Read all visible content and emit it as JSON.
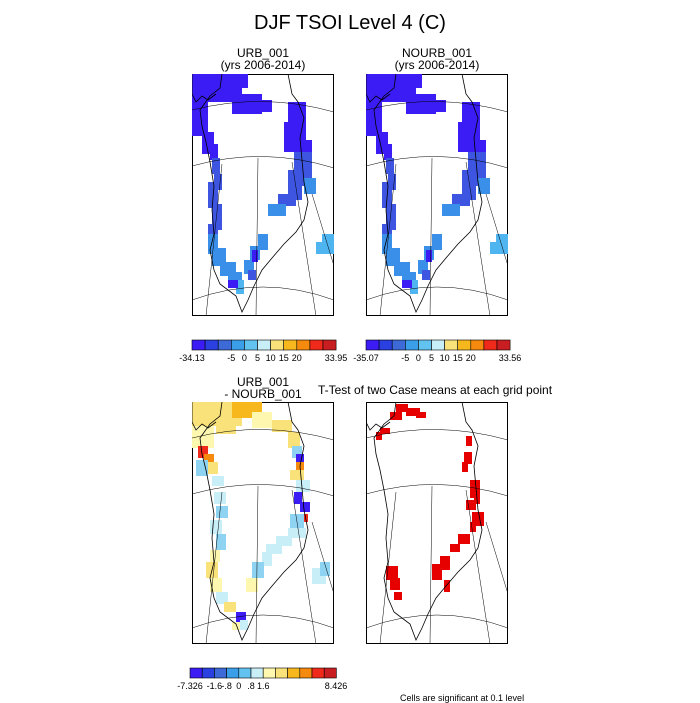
{
  "figure": {
    "title": "DJF TSOI Level 4 (C)",
    "footnote": "Cells are significant at 0.1 level"
  },
  "chart_data": [
    {
      "type": "heatmap",
      "title": "URB_001",
      "subtitle": "(yrs 2006-2014)",
      "region": "Greenland",
      "colorbar": {
        "min_label": "-34.13",
        "max_label": "33.95",
        "tick_labels": [
          "-5",
          "0",
          "5",
          "10",
          "15",
          "20"
        ],
        "colors": [
          "#3b1cf5",
          "#2a40e0",
          "#3d6ad6",
          "#3a9ee8",
          "#63c3f0",
          "#c8eef7",
          "#f9e27a",
          "#f7b81d",
          "#f58a0f",
          "#ef2a1a",
          "#c81e22"
        ]
      },
      "dominant_range": "about -34 to -25 C over the ice sheet interior margin"
    },
    {
      "type": "heatmap",
      "title": "NOURB_001",
      "subtitle": "(yrs 2006-2014)",
      "region": "Greenland",
      "colorbar": {
        "min_label": "-35.07",
        "max_label": "33.56",
        "tick_labels": [
          "-5",
          "0",
          "5",
          "10",
          "15",
          "20"
        ],
        "colors": [
          "#3b1cf5",
          "#2a40e0",
          "#3d6ad6",
          "#3a9ee8",
          "#63c3f0",
          "#c8eef7",
          "#f9e27a",
          "#f7b81d",
          "#f58a0f",
          "#ef2a1a",
          "#c81e22"
        ]
      }
    },
    {
      "type": "heatmap",
      "title": "URB_001",
      "subtitle": "- NOURB_001",
      "region": "Greenland",
      "colorbar": {
        "min_label": "-7.326",
        "max_label": "8.426",
        "tick_labels": [
          "-1.6",
          "-.8",
          "0",
          ".8",
          "1.6"
        ],
        "colors": [
          "#3b1cf5",
          "#2a40e0",
          "#3d6ad6",
          "#3a9ee8",
          "#63c3f0",
          "#c8eef7",
          "#fdf7b0",
          "#f9e27a",
          "#f7b81d",
          "#f58a0f",
          "#ef2a1a",
          "#c81e22"
        ]
      }
    },
    {
      "type": "heatmap",
      "title": "T-Test of two Case means at each grid point",
      "region": "Greenland",
      "legend": "Cells are significant at 0.1 level",
      "significance_color": "#e60000"
    }
  ]
}
